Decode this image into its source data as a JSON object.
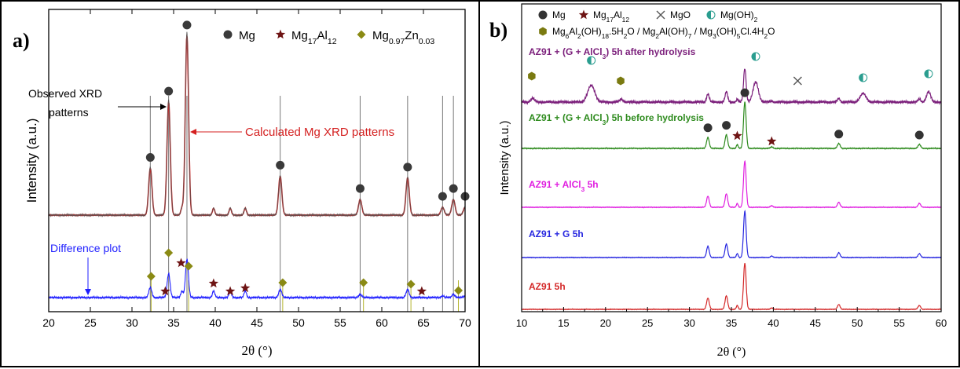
{
  "chart_data": [
    {
      "type": "line",
      "panel_label": "a)",
      "xlabel": "2θ (°)",
      "ylabel": "Intensity (a.u.)",
      "xlim": [
        20,
        70
      ],
      "x_ticks": [
        "20",
        "25",
        "30",
        "35",
        "40",
        "45",
        "50",
        "55",
        "60",
        "65",
        "70"
      ],
      "legend": [
        {
          "label": "Mg",
          "marker": "circle",
          "color": "#3a3a3a"
        },
        {
          "label": "Mg17Al12",
          "base": "Mg",
          "sub1": "17",
          "mid": "Al",
          "sub2": "12",
          "marker": "star",
          "color": "#6e1414"
        },
        {
          "label": "Mg0.97Zn0.03",
          "base": "Mg",
          "sub1": "0.97",
          "mid": "Zn",
          "sub2": "0.03",
          "marker": "diamond",
          "color": "#8a8a14"
        }
      ],
      "annotations": [
        {
          "text": "Observed XRD",
          "text2": "patterns",
          "color": "#000000"
        },
        {
          "text": "Calculated Mg XRD patterns",
          "color": "#d42020"
        },
        {
          "text": "Difference plot",
          "color": "#1f1fff"
        }
      ],
      "series": [
        {
          "name": "Observed XRD patterns",
          "color": "#555555"
        },
        {
          "name": "Calculated Mg XRD patterns",
          "color": "#d42020"
        },
        {
          "name": "Difference plot",
          "color": "#1f1fff"
        }
      ],
      "peaks_2theta": [
        32.2,
        34.4,
        36.6,
        47.8,
        57.4,
        63.1,
        67.3,
        68.6,
        70.0
      ],
      "peak_heights": [
        0.24,
        0.58,
        0.92,
        0.2,
        0.08,
        0.19,
        0.04,
        0.08,
        0.04
      ],
      "minor_peaks_2theta": [
        36.0,
        39.8,
        41.8,
        43.6
      ],
      "mg_markers_2theta": [
        32.2,
        34.4,
        36.6,
        47.8,
        57.4,
        63.1,
        67.3,
        68.6,
        70.0
      ],
      "mg17al12_markers_2theta": [
        34.0,
        35.9,
        39.8,
        41.8,
        43.6,
        64.8
      ],
      "mgzn_markers_2theta": [
        32.3,
        36.8,
        48.1,
        57.8,
        63.5,
        69.2
      ],
      "reference_lines_2theta": [
        32.2,
        34.4,
        36.6,
        47.8,
        57.4,
        63.1,
        67.3,
        68.6
      ]
    },
    {
      "type": "line",
      "panel_label": "b)",
      "xlabel": "2θ (°)",
      "ylabel": "Intensity (a.u.)",
      "xlim": [
        10,
        60
      ],
      "x_ticks": [
        "10",
        "15",
        "20",
        "25",
        "30",
        "35",
        "40",
        "45",
        "50",
        "55",
        "60"
      ],
      "legend": [
        {
          "label": "Mg",
          "marker": "circle",
          "color": "#333333"
        },
        {
          "label": "Mg17Al12",
          "base": "Mg",
          "sub1": "17",
          "mid": "Al",
          "sub2": "12",
          "marker": "star",
          "color": "#6e1414"
        },
        {
          "label": "MgO",
          "marker": "cross",
          "color": "#555555"
        },
        {
          "label": "Mg(OH)2",
          "base": "Mg(OH)",
          "sub1": "2",
          "marker": "half-circle",
          "color": "#2a9d8f"
        },
        {
          "label": "Mg6Al2(OH)18.5H2O / Mg2Al(OH)7 / Mg3(OH)5Cl.4H2O",
          "marker": "hexagon",
          "color": "#7a7a10",
          "parts": [
            [
              "Mg",
              ""
            ],
            [
              "6",
              "sub"
            ],
            [
              "Al",
              ""
            ],
            [
              "2",
              "sub"
            ],
            [
              "(OH)",
              ""
            ],
            [
              "18",
              "sub"
            ],
            [
              ".5H",
              ""
            ],
            [
              "2",
              "sub"
            ],
            [
              "O / Mg",
              ""
            ],
            [
              "2",
              "sub"
            ],
            [
              "Al(OH)",
              ""
            ],
            [
              "7",
              "sub"
            ],
            [
              " / Mg",
              ""
            ],
            [
              "3",
              "sub"
            ],
            [
              "(OH)",
              ""
            ],
            [
              "5",
              "sub"
            ],
            [
              "Cl.4H",
              ""
            ],
            [
              "2",
              "sub"
            ],
            [
              "O",
              ""
            ]
          ]
        }
      ],
      "series": [
        {
          "name": "AZ91 + (G + AlCl3) 5h after hydrolysis",
          "display": [
            [
              "AZ91 + (G + AlCl",
              ""
            ],
            [
              "3",
              "sub"
            ],
            [
              ") 5h after hydrolysis",
              ""
            ]
          ],
          "color": "#7b1f7b"
        },
        {
          "name": "AZ91 + (G + AlCl3) 5h before hydrolysis",
          "display": [
            [
              "AZ91 + (G + AlCl",
              ""
            ],
            [
              "3",
              "sub"
            ],
            [
              ") 5h before hydrolysis",
              ""
            ]
          ],
          "color": "#2e8b1e"
        },
        {
          "name": "AZ91 + AlCl3 5h",
          "display": [
            [
              "AZ91 + AlCl",
              ""
            ],
            [
              "3",
              "sub"
            ],
            [
              " 5h",
              ""
            ]
          ],
          "color": "#e020e0"
        },
        {
          "name": "AZ91 + G 5h",
          "display": [
            [
              "AZ91 + G 5h",
              ""
            ]
          ],
          "color": "#2828e0"
        },
        {
          "name": "AZ91 5h",
          "display": [
            [
              "AZ91 5h",
              ""
            ]
          ],
          "color": "#d42a2a"
        }
      ],
      "peaks_2theta": [
        32.2,
        34.4,
        36.6,
        47.8,
        57.4
      ],
      "mg_markers_2theta": [
        32.2,
        34.4,
        36.6,
        47.8,
        57.4
      ],
      "mg17al12_markers_2theta": [
        35.7,
        39.8
      ],
      "mgoh2_markers_2theta": [
        18.3,
        37.9,
        50.7,
        58.5
      ],
      "mgo_markers_2theta": [
        42.9
      ],
      "ldh_markers_2theta": [
        11.2,
        21.8
      ]
    }
  ]
}
